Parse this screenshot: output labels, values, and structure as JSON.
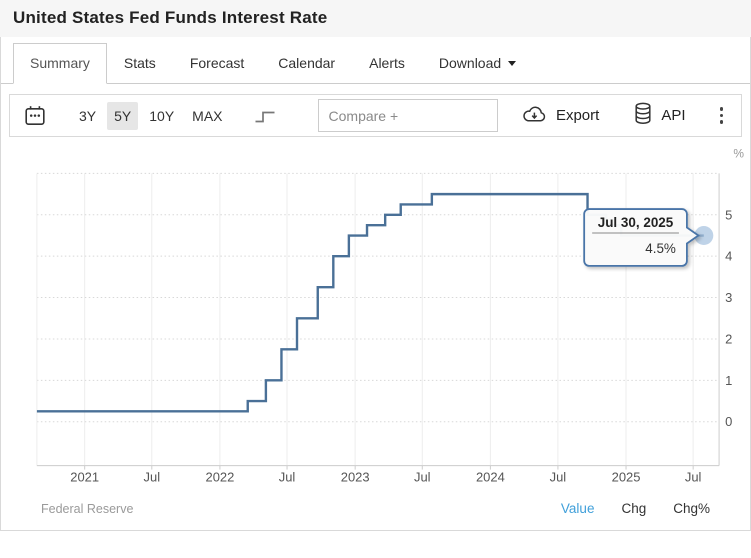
{
  "header": {
    "title": "United States Fed Funds Interest Rate"
  },
  "tabs": [
    {
      "label": "Summary",
      "active": true
    },
    {
      "label": "Stats",
      "active": false
    },
    {
      "label": "Forecast",
      "active": false
    },
    {
      "label": "Calendar",
      "active": false
    },
    {
      "label": "Alerts",
      "active": false
    },
    {
      "label": "Download",
      "active": false,
      "has_caret": true
    }
  ],
  "toolbar": {
    "calendar_icon": "calendar-icon",
    "ranges": [
      {
        "label": "3Y",
        "active": false
      },
      {
        "label": "5Y",
        "active": true
      },
      {
        "label": "10Y",
        "active": false
      },
      {
        "label": "MAX",
        "active": false
      }
    ],
    "chart_type_icon": "step-line-icon",
    "compare_placeholder": "Compare +",
    "export_label": "Export",
    "api_label": "API",
    "menu_icon": "kebab-menu-icon"
  },
  "tooltip": {
    "date": "Jul 30, 2025",
    "value": "4.5%"
  },
  "chart_data": {
    "type": "line",
    "step": true,
    "title": "United States Fed Funds Interest Rate",
    "ylabel": "%",
    "unit": "%",
    "grid": true,
    "legend_position": "none",
    "xlim": [
      "2020-08-25",
      "2025-09-01"
    ],
    "ylim": [
      -1.05,
      6.0
    ],
    "y_ticks": [
      0,
      1,
      2,
      3,
      4,
      5
    ],
    "x_ticks": [
      {
        "date": "2021-01-01",
        "label": "2021"
      },
      {
        "date": "2021-07-01",
        "label": "Jul"
      },
      {
        "date": "2022-01-01",
        "label": "2022"
      },
      {
        "date": "2022-07-01",
        "label": "Jul"
      },
      {
        "date": "2023-01-01",
        "label": "2023"
      },
      {
        "date": "2023-07-01",
        "label": "Jul"
      },
      {
        "date": "2024-01-01",
        "label": "2024"
      },
      {
        "date": "2024-07-01",
        "label": "Jul"
      },
      {
        "date": "2025-01-01",
        "label": "2025"
      },
      {
        "date": "2025-07-01",
        "label": "Jul"
      }
    ],
    "series": [
      {
        "name": "Fed Funds Interest Rate",
        "color": "#4a7097",
        "points": [
          [
            "2020-08-25",
            0.25
          ],
          [
            "2022-03-17",
            0.5
          ],
          [
            "2022-05-05",
            1.0
          ],
          [
            "2022-06-16",
            1.75
          ],
          [
            "2022-07-28",
            2.5
          ],
          [
            "2022-09-22",
            3.25
          ],
          [
            "2022-11-03",
            4.0
          ],
          [
            "2022-12-15",
            4.5
          ],
          [
            "2023-02-02",
            4.75
          ],
          [
            "2023-03-23",
            5.0
          ],
          [
            "2023-05-04",
            5.25
          ],
          [
            "2023-07-27",
            5.5
          ],
          [
            "2024-09-19",
            5.0
          ],
          [
            "2024-11-08",
            4.75
          ],
          [
            "2024-12-19",
            4.5
          ],
          [
            "2025-07-30",
            4.5
          ]
        ]
      }
    ],
    "last_point": {
      "date": "2025-07-30",
      "value": 4.5,
      "label_date": "Jul 30, 2025",
      "label_value": "4.5%"
    }
  },
  "footer": {
    "source": "Federal Reserve",
    "links": [
      {
        "label": "Value",
        "active": true
      },
      {
        "label": "Chg",
        "active": false
      },
      {
        "label": "Chg%",
        "active": false
      }
    ]
  },
  "colors": {
    "line": "#4a7097",
    "marker_fill": "#aac4e0",
    "tooltip_border": "#4a74a8",
    "grid_v": "#ededed",
    "grid_h": "#d8d8d8",
    "axis": "#cccccc",
    "axis_label": "#555555",
    "unit_label": "#999999",
    "active_link": "#41a0da"
  }
}
